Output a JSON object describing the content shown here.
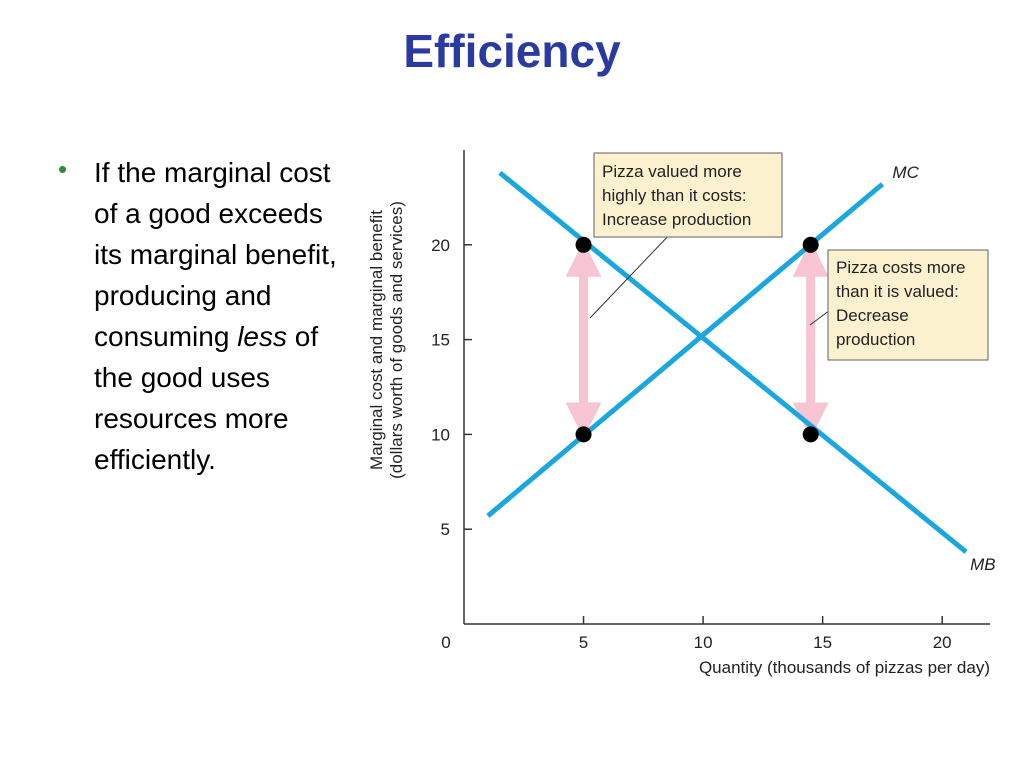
{
  "slide": {
    "title": "Efficiency",
    "bullet": {
      "part1": "If the marginal cost of a good exceeds its marginal benefit, producing and consuming ",
      "emphasis": "less",
      "part2": " of the good uses resources more efficiently."
    }
  },
  "colors": {
    "title": "#2b3aa0",
    "bullet": "#2e8b3a",
    "curve": "#1aa7df",
    "arrow": "#f6c4d2",
    "note_fill": "#fbf1cf",
    "note_border": "#7a7a7a"
  },
  "chart_data": {
    "type": "line",
    "xlabel": "Quantity (thousands of pizzas per day)",
    "ylabel": "Marginal cost and marginal benefit",
    "ylabel2": "(dollars worth of goods and services)",
    "xlim": [
      0,
      22
    ],
    "ylim": [
      0,
      25
    ],
    "x_ticks": [
      "0",
      "5",
      "10",
      "15",
      "20"
    ],
    "y_ticks": [
      "5",
      "10",
      "15",
      "20"
    ],
    "x_tick_values": [
      0,
      5,
      10,
      15,
      20
    ],
    "y_tick_values": [
      5,
      10,
      15,
      20
    ],
    "series": [
      {
        "name": "MC",
        "points": [
          [
            1,
            5.7
          ],
          [
            17.5,
            23.2
          ]
        ]
      },
      {
        "name": "MB",
        "points": [
          [
            1.5,
            23.8
          ],
          [
            21,
            3.8
          ]
        ]
      }
    ],
    "points": [
      {
        "x": 5,
        "y": 20
      },
      {
        "x": 5,
        "y": 10
      },
      {
        "x": 14.5,
        "y": 20
      },
      {
        "x": 14.5,
        "y": 10
      }
    ],
    "arrows": [
      {
        "x": 5,
        "y1": 10,
        "y2": 20
      },
      {
        "x": 14.5,
        "y1": 10,
        "y2": 20
      }
    ],
    "annotations": [
      {
        "lines": [
          "Pizza valued more",
          "highly than it costs:",
          "Increase production"
        ]
      },
      {
        "lines": [
          "Pizza costs more",
          "than it is valued:",
          "Decrease",
          "production"
        ]
      }
    ]
  }
}
